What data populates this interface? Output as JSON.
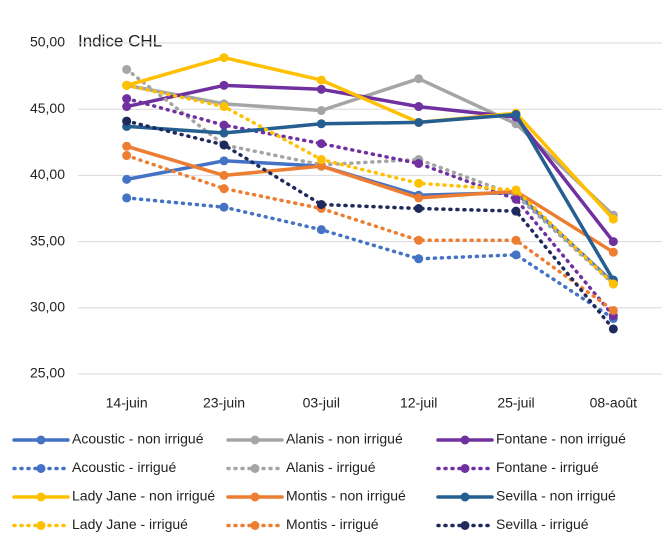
{
  "chart_data": {
    "type": "line",
    "title": "Indice CHL",
    "categories": [
      "14-juin",
      "23-juin",
      "03-juil",
      "12-juil",
      "25-juil",
      "08-août"
    ],
    "ylim": [
      25,
      50
    ],
    "yticks": [
      {
        "value": 25,
        "label": "25,00"
      },
      {
        "value": 30,
        "label": "30,00"
      },
      {
        "value": 35,
        "label": "35,00"
      },
      {
        "value": 40,
        "label": "40,00"
      },
      {
        "value": 45,
        "label": "45,00"
      },
      {
        "value": 50,
        "label": "50,00"
      }
    ],
    "grid": true,
    "legend": "bottom",
    "series": [
      {
        "name": "Acoustic - non irrigué",
        "color": "#4472c4",
        "line_style": "solid",
        "values": [
          39.7,
          41.1,
          40.7,
          38.5,
          38.7,
          31.9
        ]
      },
      {
        "name": "Alanis - non irrigué",
        "color": "#a5a5a5",
        "line_style": "solid",
        "values": [
          46.8,
          45.4,
          44.9,
          47.3,
          43.9,
          37.0
        ]
      },
      {
        "name": "Fontane - non irrigué",
        "color": "#7030a0",
        "line_style": "solid",
        "values": [
          45.2,
          46.8,
          46.5,
          45.2,
          44.4,
          35.0
        ]
      },
      {
        "name": "Acoustic - irrigué",
        "color": "#4472c4",
        "line_style": "dotted",
        "values": [
          38.3,
          37.6,
          35.9,
          33.7,
          34.0,
          29.2
        ]
      },
      {
        "name": "Alanis - irrigué",
        "color": "#a5a5a5",
        "line_style": "dotted",
        "values": [
          48.0,
          42.3,
          40.8,
          41.2,
          38.5,
          31.8
        ]
      },
      {
        "name": "Fontane - irrigué",
        "color": "#7030a0",
        "line_style": "dotted",
        "values": [
          45.8,
          43.8,
          42.4,
          40.9,
          38.2,
          29.4
        ]
      },
      {
        "name": "Lady Jane - non irrigué",
        "color": "#ffc000",
        "line_style": "solid",
        "values": [
          46.8,
          48.9,
          47.2,
          44.0,
          44.7,
          36.7
        ]
      },
      {
        "name": "Montis - non irrigué",
        "color": "#ed7d31",
        "line_style": "solid",
        "values": [
          42.2,
          40.0,
          40.7,
          38.3,
          38.8,
          34.2
        ]
      },
      {
        "name": "Sevilla - non irrigué",
        "color": "#255e91",
        "line_style": "solid",
        "values": [
          43.7,
          43.2,
          43.9,
          44.0,
          44.6,
          32.1
        ]
      },
      {
        "name": "Lady Jane - irrigué",
        "color": "#ffc000",
        "line_style": "dotted",
        "values": [
          46.8,
          45.2,
          41.2,
          39.4,
          38.9,
          31.8
        ]
      },
      {
        "name": "Montis - irrigué",
        "color": "#ed7d31",
        "line_style": "dotted",
        "values": [
          41.5,
          39.0,
          37.5,
          35.1,
          35.1,
          29.8
        ]
      },
      {
        "name": "Sevilla - irrigué",
        "color": "#1f2a5c",
        "line_style": "dotted",
        "values": [
          44.1,
          42.3,
          37.8,
          37.5,
          37.3,
          28.4
        ]
      }
    ]
  }
}
